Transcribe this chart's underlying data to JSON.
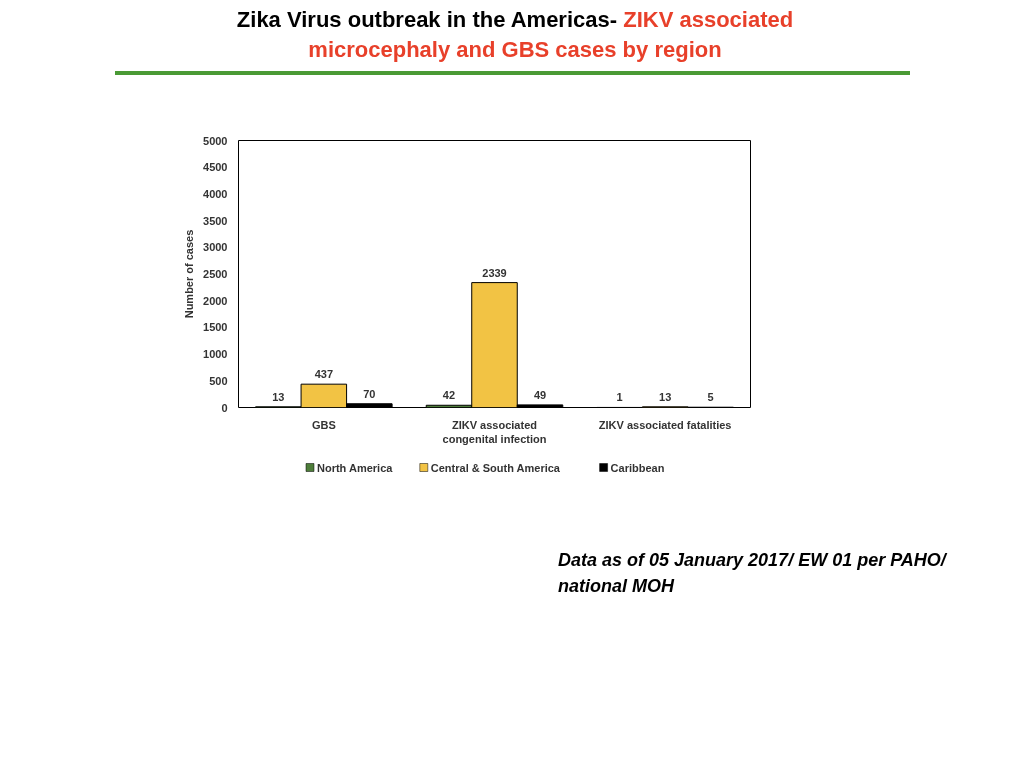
{
  "chart_data": {
    "type": "bar",
    "title": "Zika Virus outbreak in the Americas-",
    "subtitle": "ZIKV associated microcephaly and GBS cases by region",
    "ylabel": "Number of cases",
    "categories": [
      "GBS",
      "ZIKV associated congenital infection",
      "ZIKV associated fatalities"
    ],
    "series": [
      {
        "name": "North America",
        "color": "#4e7d3a",
        "values": [
          13,
          42,
          1
        ]
      },
      {
        "name": "Central & South America",
        "color": "#f2c344",
        "values": [
          437,
          2339,
          13
        ]
      },
      {
        "name": "Caribbean",
        "color": "#000000",
        "values": [
          70,
          49,
          5
        ]
      }
    ],
    "ylim": [
      0,
      5000
    ],
    "yticks": [
      0,
      500,
      1000,
      1500,
      2000,
      2500,
      3000,
      3500,
      4000,
      4500,
      5000
    ],
    "data_labels": true,
    "grid": false,
    "legend": "bottom",
    "annotations": [
      "Data as of 05 January 2017/ EW 01 per PAHO/ national MOH"
    ]
  }
}
